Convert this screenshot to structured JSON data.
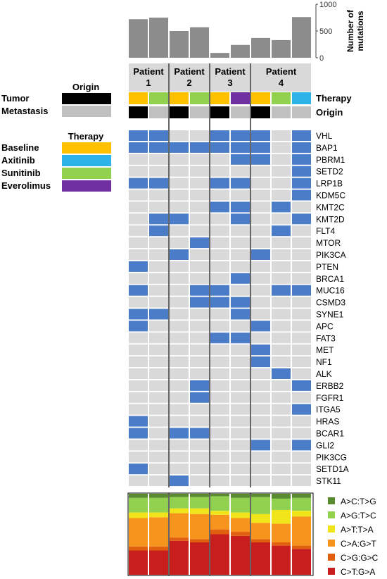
{
  "chart_data": [
    {
      "type": "bar",
      "ylabel": "Number of mutations",
      "ylim": [
        0,
        1000
      ],
      "yticks": [
        0,
        500,
        1000
      ],
      "values": [
        720,
        750,
        500,
        570,
        90,
        240,
        370,
        330,
        760
      ]
    },
    {
      "type": "heatmap",
      "patients": [
        {
          "label_line1": "Patient",
          "label_line2": "1",
          "samples": 2
        },
        {
          "label_line1": "Patient",
          "label_line2": "2",
          "samples": 2
        },
        {
          "label_line1": "Patient",
          "label_line2": "3",
          "samples": 2
        },
        {
          "label_line1": "Patient",
          "label_line2": "4",
          "samples": 3
        }
      ],
      "therapy_row_label": "Therapy",
      "origin_row_label": "Origin",
      "therapy": [
        "Baseline",
        "Sunitinib",
        "Baseline",
        "Sunitinib",
        "Baseline",
        "Everolimus",
        "Baseline",
        "Sunitinib",
        "Axitinib"
      ],
      "origin": [
        "Tumor",
        "Metastasis",
        "Tumor",
        "Metastasis",
        "Tumor",
        "Metastasis",
        "Tumor",
        "Metastasis",
        "Metastasis"
      ],
      "genes": [
        "VHL",
        "BAP1",
        "PBRM1",
        "SETD2",
        "LRP1B",
        "KDM5C",
        "KMT2C",
        "KMT2D",
        "FLT4",
        "MTOR",
        "PIK3CA",
        "PTEN",
        "BRCA1",
        "MUC16",
        "CSMD3",
        "SYNE1",
        "APC",
        "FAT3",
        "MET",
        "NF1",
        "ALK",
        "ERBB2",
        "FGFR1",
        "ITGA5",
        "HRAS",
        "BCAR1",
        "GLI2",
        "PIK3CG",
        "SETD1A",
        "STK11"
      ],
      "matrix": [
        [
          1,
          1,
          0,
          0,
          1,
          1,
          1,
          0,
          1
        ],
        [
          1,
          1,
          1,
          1,
          1,
          1,
          1,
          0,
          1
        ],
        [
          0,
          0,
          0,
          0,
          0,
          1,
          1,
          0,
          1
        ],
        [
          0,
          0,
          0,
          0,
          0,
          0,
          0,
          0,
          1
        ],
        [
          1,
          1,
          0,
          0,
          1,
          1,
          0,
          0,
          1
        ],
        [
          0,
          0,
          0,
          0,
          0,
          0,
          0,
          0,
          1
        ],
        [
          0,
          0,
          0,
          0,
          1,
          1,
          0,
          1,
          0
        ],
        [
          0,
          1,
          1,
          0,
          0,
          1,
          0,
          0,
          1
        ],
        [
          0,
          1,
          0,
          0,
          0,
          0,
          0,
          1,
          0
        ],
        [
          0,
          0,
          0,
          1,
          0,
          0,
          0,
          0,
          0
        ],
        [
          0,
          0,
          1,
          0,
          0,
          0,
          1,
          0,
          0
        ],
        [
          1,
          0,
          0,
          0,
          0,
          0,
          0,
          0,
          0
        ],
        [
          0,
          0,
          0,
          0,
          0,
          1,
          0,
          0,
          0
        ],
        [
          1,
          0,
          0,
          1,
          1,
          0,
          0,
          1,
          1
        ],
        [
          0,
          0,
          0,
          1,
          1,
          1,
          0,
          0,
          0
        ],
        [
          1,
          1,
          0,
          0,
          0,
          1,
          0,
          0,
          0
        ],
        [
          1,
          0,
          0,
          0,
          0,
          0,
          1,
          0,
          0
        ],
        [
          0,
          0,
          0,
          0,
          1,
          1,
          0,
          0,
          0
        ],
        [
          0,
          0,
          0,
          0,
          0,
          0,
          1,
          0,
          0
        ],
        [
          0,
          0,
          0,
          0,
          0,
          0,
          1,
          0,
          0
        ],
        [
          0,
          0,
          0,
          0,
          0,
          0,
          0,
          1,
          0
        ],
        [
          0,
          0,
          0,
          1,
          0,
          0,
          0,
          0,
          1
        ],
        [
          0,
          0,
          0,
          1,
          0,
          0,
          0,
          0,
          0
        ],
        [
          0,
          0,
          0,
          0,
          0,
          0,
          0,
          0,
          1
        ],
        [
          1,
          0,
          0,
          0,
          0,
          0,
          0,
          0,
          0
        ],
        [
          1,
          0,
          1,
          1,
          0,
          0,
          0,
          0,
          0
        ],
        [
          0,
          0,
          0,
          0,
          0,
          0,
          1,
          0,
          1
        ],
        [
          0,
          0,
          0,
          0,
          0,
          0,
          0,
          0,
          0
        ],
        [
          1,
          0,
          0,
          0,
          0,
          0,
          0,
          0,
          0
        ],
        [
          0,
          0,
          1,
          0,
          0,
          0,
          0,
          0,
          0
        ]
      ]
    },
    {
      "type": "bar",
      "stacked": true,
      "normalized": true,
      "series": [
        {
          "name": "C>T:G>A",
          "values": [
            0.3,
            0.3,
            0.42,
            0.4,
            0.5,
            0.48,
            0.4,
            0.36,
            0.32
          ]
        },
        {
          "name": "C>G:G>C",
          "values": [
            0.05,
            0.05,
            0.04,
            0.04,
            0.06,
            0.05,
            0.04,
            0.04,
            0.04
          ]
        },
        {
          "name": "C>A:G>T",
          "values": [
            0.35,
            0.36,
            0.3,
            0.31,
            0.18,
            0.17,
            0.2,
            0.23,
            0.36
          ]
        },
        {
          "name": "A>T:T>A",
          "values": [
            0.07,
            0.06,
            0.06,
            0.07,
            0.05,
            0.07,
            0.11,
            0.17,
            0.07
          ]
        },
        {
          "name": "A>G:T>C",
          "values": [
            0.18,
            0.18,
            0.14,
            0.14,
            0.18,
            0.18,
            0.21,
            0.14,
            0.16
          ]
        },
        {
          "name": "A>C:T>G",
          "values": [
            0.05,
            0.05,
            0.04,
            0.04,
            0.03,
            0.05,
            0.04,
            0.06,
            0.05
          ]
        }
      ],
      "legend_order": [
        "A>C:T>G",
        "A>G:T>C",
        "A>T:T>A",
        "C>A:G>T",
        "C>G:G>C",
        "C>T:G>A"
      ]
    }
  ],
  "legends": {
    "origin": {
      "title": "Origin",
      "items": [
        {
          "label": "Tumor",
          "color": "#000000"
        },
        {
          "label": "Metastasis",
          "color": "#c0c0c0"
        }
      ]
    },
    "therapy": {
      "title": "Therapy",
      "items": [
        {
          "label": "Baseline",
          "color": "#ffc000"
        },
        {
          "label": "Axitinib",
          "color": "#2eb3e8"
        },
        {
          "label": "Sunitinib",
          "color": "#92d050"
        },
        {
          "label": "Everolimus",
          "color": "#7030a0"
        }
      ]
    }
  },
  "colors": {
    "mutated": "#4a7cc7",
    "wildtype": "#d9d9d9",
    "bar": "#8c8c8c",
    "patient_header": "#d9d9d9",
    "Tumor": "#000000",
    "Metastasis": "#c0c0c0",
    "Baseline": "#ffc000",
    "Axitinib": "#2eb3e8",
    "Sunitinib": "#92d050",
    "Everolimus": "#7030a0",
    "A>C:T>G": "#5a8a2f",
    "A>G:T>C": "#92d050",
    "A>T:T>A": "#f0e41a",
    "C>A:G>T": "#f7941d",
    "C>G:G>C": "#e0600f",
    "C>T:G>A": "#c81e1e"
  }
}
